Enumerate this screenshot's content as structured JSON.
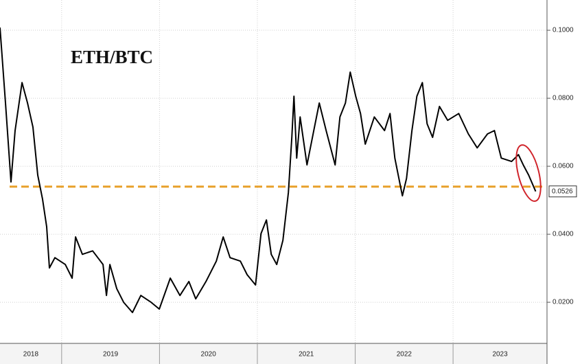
{
  "chart_data": {
    "type": "line",
    "title": "ETH/BTC",
    "x": [
      2018.37,
      2018.426,
      2018.482,
      2018.524,
      2018.595,
      2018.651,
      2018.707,
      2018.756,
      2018.805,
      2018.847,
      2018.875,
      2018.931,
      2019.037,
      2019.107,
      2019.142,
      2019.212,
      2019.317,
      2019.423,
      2019.458,
      2019.493,
      2019.563,
      2019.633,
      2019.724,
      2019.809,
      2019.914,
      2019.998,
      2020.11,
      2020.209,
      2020.3,
      2020.37,
      2020.475,
      2020.581,
      2020.651,
      2020.721,
      2020.826,
      2020.896,
      2020.981,
      2021.037,
      2021.093,
      2021.142,
      2021.198,
      2021.261,
      2021.317,
      2021.352,
      2021.374,
      2021.402,
      2021.437,
      2021.507,
      2021.577,
      2021.633,
      2021.703,
      2021.795,
      2021.844,
      2021.9,
      2021.949,
      2022.005,
      2022.054,
      2022.103,
      2022.195,
      2022.3,
      2022.356,
      2022.405,
      2022.461,
      2022.482,
      2022.524,
      2022.58,
      2022.63,
      2022.686,
      2022.735,
      2022.791,
      2022.861,
      2022.945,
      2023.058,
      2023.156,
      2023.247,
      2023.352,
      2023.423,
      2023.493,
      2023.598,
      2023.668,
      2023.717,
      2023.773,
      2023.844
    ],
    "values": [
      0.1008,
      0.0786,
      0.0554,
      0.0705,
      0.0846,
      0.0786,
      0.0715,
      0.0574,
      0.0503,
      0.0422,
      0.0301,
      0.0331,
      0.0311,
      0.0271,
      0.0392,
      0.0341,
      0.0351,
      0.0311,
      0.022,
      0.0311,
      0.024,
      0.02,
      0.017,
      0.022,
      0.02,
      0.018,
      0.0271,
      0.022,
      0.0261,
      0.021,
      0.0261,
      0.0321,
      0.0392,
      0.0331,
      0.0321,
      0.0281,
      0.0251,
      0.0402,
      0.0442,
      0.0341,
      0.0311,
      0.0382,
      0.0523,
      0.0685,
      0.0806,
      0.0624,
      0.0745,
      0.0604,
      0.0705,
      0.0786,
      0.0705,
      0.0604,
      0.0745,
      0.0786,
      0.0877,
      0.0806,
      0.0755,
      0.0665,
      0.0745,
      0.0705,
      0.0755,
      0.0624,
      0.0543,
      0.0513,
      0.0564,
      0.0705,
      0.0806,
      0.0846,
      0.0725,
      0.0685,
      0.0776,
      0.0735,
      0.0755,
      0.0695,
      0.0654,
      0.0695,
      0.0705,
      0.0624,
      0.0614,
      0.0634,
      0.0604,
      0.0574,
      0.0526
    ],
    "color": "#000000",
    "xlim": [
      2018.37,
      2023.96
    ],
    "xticks": [
      {
        "value": 2018,
        "label": "2018"
      },
      {
        "value": 2019,
        "label": "2019"
      },
      {
        "value": 2020,
        "label": "2020"
      },
      {
        "value": 2021,
        "label": "2021"
      },
      {
        "value": 2022,
        "label": "2022"
      },
      {
        "value": 2023,
        "label": "2023"
      }
    ],
    "ylim": [
      0.0079,
      0.1089
    ],
    "yticks": [
      {
        "value": 0.02,
        "label": "0.0200"
      },
      {
        "value": 0.04,
        "label": "0.0400"
      },
      {
        "value": 0.06,
        "label": "0.0600"
      },
      {
        "value": 0.08,
        "label": "0.0800"
      },
      {
        "value": 0.1,
        "label": "0.1000"
      }
    ],
    "last_value": 0.0526,
    "reference_line": {
      "value": 0.054,
      "color": "#e8a02a"
    },
    "grid": true
  }
}
